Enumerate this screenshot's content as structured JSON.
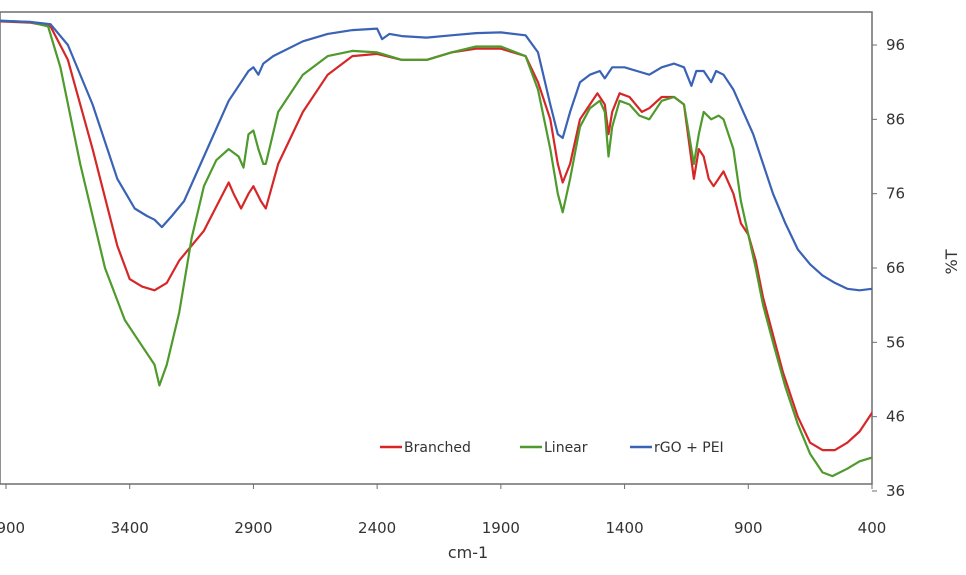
{
  "chart_data": {
    "type": "line",
    "title": "",
    "xlabel": "cm-1",
    "ylabel": "%T",
    "x_reversed": true,
    "xlim": [
      3900,
      400
    ],
    "ylim": [
      36,
      100
    ],
    "x_ticks": [
      "3900",
      "3400",
      "2900",
      "2400",
      "1900",
      "1400",
      "900",
      "400"
    ],
    "y_ticks": [
      "96",
      "86",
      "76",
      "66",
      "56",
      "46",
      "36"
    ],
    "legend_position": "bottom-right",
    "series": [
      {
        "name": "Branched",
        "color": "#d62728",
        "points": [
          [
            3950,
            99.2
          ],
          [
            3800,
            99
          ],
          [
            3720,
            98.5
          ],
          [
            3650,
            94
          ],
          [
            3550,
            82
          ],
          [
            3450,
            69
          ],
          [
            3400,
            64.5
          ],
          [
            3350,
            63.5
          ],
          [
            3300,
            63
          ],
          [
            3250,
            64
          ],
          [
            3200,
            67
          ],
          [
            3100,
            71
          ],
          [
            3000,
            77.5
          ],
          [
            2980,
            76
          ],
          [
            2950,
            74
          ],
          [
            2920,
            76
          ],
          [
            2900,
            77
          ],
          [
            2870,
            75
          ],
          [
            2850,
            74
          ],
          [
            2800,
            80
          ],
          [
            2700,
            87
          ],
          [
            2600,
            92
          ],
          [
            2500,
            94.5
          ],
          [
            2400,
            94.8
          ],
          [
            2300,
            94
          ],
          [
            2200,
            94
          ],
          [
            2100,
            95
          ],
          [
            2000,
            95.5
          ],
          [
            1900,
            95.5
          ],
          [
            1800,
            94.5
          ],
          [
            1750,
            91
          ],
          [
            1700,
            86
          ],
          [
            1670,
            80
          ],
          [
            1650,
            77.5
          ],
          [
            1620,
            80
          ],
          [
            1580,
            86
          ],
          [
            1540,
            88
          ],
          [
            1510,
            89.5
          ],
          [
            1480,
            88
          ],
          [
            1465,
            84
          ],
          [
            1450,
            87
          ],
          [
            1420,
            89.5
          ],
          [
            1380,
            89
          ],
          [
            1330,
            87
          ],
          [
            1300,
            87.5
          ],
          [
            1250,
            89
          ],
          [
            1200,
            89
          ],
          [
            1160,
            88
          ],
          [
            1120,
            78
          ],
          [
            1100,
            82
          ],
          [
            1080,
            81
          ],
          [
            1060,
            78
          ],
          [
            1040,
            77
          ],
          [
            1000,
            79
          ],
          [
            960,
            76
          ],
          [
            930,
            72
          ],
          [
            900,
            70.5
          ],
          [
            870,
            67
          ],
          [
            840,
            62
          ],
          [
            800,
            57
          ],
          [
            760,
            52
          ],
          [
            700,
            46
          ],
          [
            650,
            42.5
          ],
          [
            600,
            41.5
          ],
          [
            550,
            41.5
          ],
          [
            500,
            42.5
          ],
          [
            450,
            44
          ],
          [
            400,
            46.5
          ]
        ]
      },
      {
        "name": "Linear",
        "color": "#4e9a2c",
        "points": [
          [
            3950,
            99.3
          ],
          [
            3800,
            99.1
          ],
          [
            3730,
            98.5
          ],
          [
            3680,
            93
          ],
          [
            3600,
            80
          ],
          [
            3500,
            66
          ],
          [
            3420,
            59
          ],
          [
            3360,
            56
          ],
          [
            3300,
            53
          ],
          [
            3280,
            50.2
          ],
          [
            3250,
            53
          ],
          [
            3200,
            60
          ],
          [
            3150,
            70
          ],
          [
            3100,
            77
          ],
          [
            3050,
            80.5
          ],
          [
            3000,
            82
          ],
          [
            2960,
            81
          ],
          [
            2940,
            79.5
          ],
          [
            2920,
            84
          ],
          [
            2900,
            84.5
          ],
          [
            2880,
            82
          ],
          [
            2860,
            80
          ],
          [
            2850,
            80
          ],
          [
            2800,
            87
          ],
          [
            2700,
            92
          ],
          [
            2600,
            94.5
          ],
          [
            2500,
            95.2
          ],
          [
            2400,
            95
          ],
          [
            2300,
            94
          ],
          [
            2200,
            94
          ],
          [
            2100,
            95
          ],
          [
            2000,
            95.8
          ],
          [
            1900,
            95.8
          ],
          [
            1800,
            94.5
          ],
          [
            1750,
            90
          ],
          [
            1700,
            82
          ],
          [
            1670,
            76
          ],
          [
            1650,
            73.5
          ],
          [
            1620,
            78
          ],
          [
            1580,
            85
          ],
          [
            1540,
            87.5
          ],
          [
            1500,
            88.5
          ],
          [
            1480,
            87
          ],
          [
            1465,
            81
          ],
          [
            1450,
            85
          ],
          [
            1420,
            88.5
          ],
          [
            1380,
            88
          ],
          [
            1340,
            86.5
          ],
          [
            1300,
            86
          ],
          [
            1250,
            88.5
          ],
          [
            1200,
            89
          ],
          [
            1160,
            88
          ],
          [
            1120,
            80
          ],
          [
            1100,
            84
          ],
          [
            1080,
            87
          ],
          [
            1050,
            86
          ],
          [
            1020,
            86.5
          ],
          [
            1000,
            86
          ],
          [
            960,
            82
          ],
          [
            930,
            75
          ],
          [
            900,
            70.5
          ],
          [
            870,
            66
          ],
          [
            840,
            61
          ],
          [
            800,
            56
          ],
          [
            750,
            50
          ],
          [
            700,
            45
          ],
          [
            650,
            41
          ],
          [
            600,
            38.5
          ],
          [
            560,
            38
          ],
          [
            500,
            39
          ],
          [
            450,
            40
          ],
          [
            400,
            40.5
          ]
        ]
      },
      {
        "name": "rGO + PEI",
        "color": "#3a63b5",
        "points": [
          [
            3950,
            99.3
          ],
          [
            3800,
            99.1
          ],
          [
            3720,
            98.8
          ],
          [
            3650,
            96
          ],
          [
            3550,
            88
          ],
          [
            3450,
            78
          ],
          [
            3380,
            74
          ],
          [
            3330,
            73
          ],
          [
            3300,
            72.5
          ],
          [
            3270,
            71.5
          ],
          [
            3230,
            73
          ],
          [
            3180,
            75
          ],
          [
            3100,
            81
          ],
          [
            3000,
            88.5
          ],
          [
            2950,
            91
          ],
          [
            2920,
            92.5
          ],
          [
            2900,
            93
          ],
          [
            2880,
            92
          ],
          [
            2860,
            93.5
          ],
          [
            2820,
            94.5
          ],
          [
            2700,
            96.5
          ],
          [
            2600,
            97.5
          ],
          [
            2500,
            98
          ],
          [
            2400,
            98.2
          ],
          [
            2380,
            96.8
          ],
          [
            2350,
            97.5
          ],
          [
            2300,
            97.2
          ],
          [
            2200,
            97
          ],
          [
            2100,
            97.3
          ],
          [
            2000,
            97.6
          ],
          [
            1900,
            97.7
          ],
          [
            1800,
            97.3
          ],
          [
            1750,
            95
          ],
          [
            1700,
            88
          ],
          [
            1670,
            84
          ],
          [
            1650,
            83.5
          ],
          [
            1620,
            87
          ],
          [
            1580,
            91
          ],
          [
            1540,
            92
          ],
          [
            1500,
            92.5
          ],
          [
            1480,
            91.5
          ],
          [
            1450,
            93
          ],
          [
            1400,
            93
          ],
          [
            1350,
            92.5
          ],
          [
            1300,
            92
          ],
          [
            1250,
            93
          ],
          [
            1200,
            93.5
          ],
          [
            1160,
            93
          ],
          [
            1130,
            90.5
          ],
          [
            1110,
            92.5
          ],
          [
            1080,
            92.5
          ],
          [
            1050,
            91
          ],
          [
            1030,
            92.5
          ],
          [
            1000,
            92
          ],
          [
            960,
            90
          ],
          [
            920,
            87
          ],
          [
            880,
            84
          ],
          [
            840,
            80
          ],
          [
            800,
            76
          ],
          [
            750,
            72
          ],
          [
            700,
            68.5
          ],
          [
            650,
            66.5
          ],
          [
            600,
            65
          ],
          [
            550,
            64
          ],
          [
            500,
            63.2
          ],
          [
            450,
            63
          ],
          [
            400,
            63.2
          ]
        ]
      }
    ]
  }
}
